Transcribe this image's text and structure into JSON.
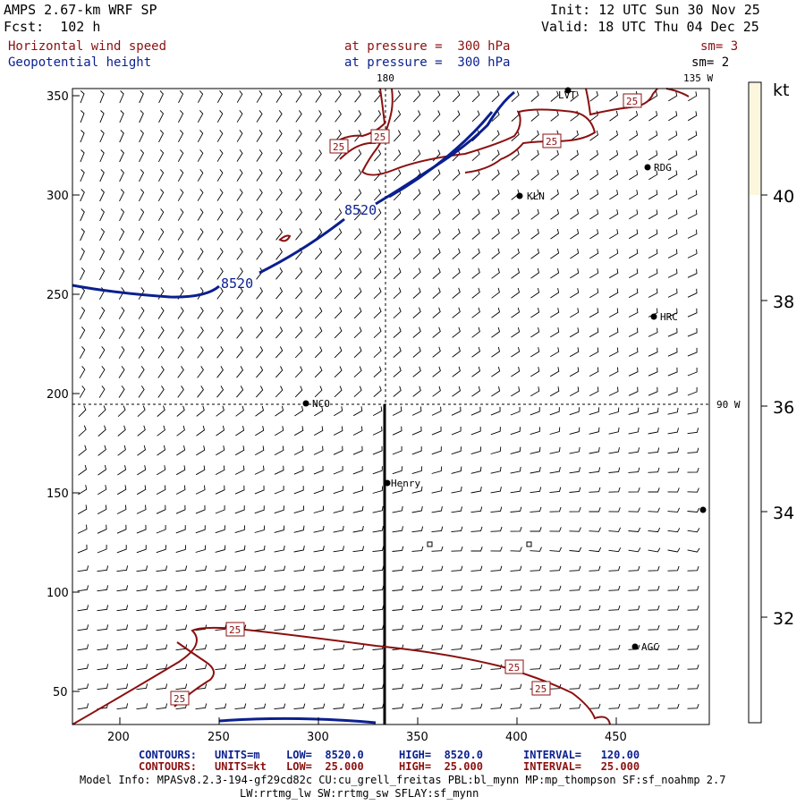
{
  "header": {
    "model": "AMPS 2.67-km WRF SP",
    "forecast": "Fcst:  102 h",
    "init": "Init: 12 UTC Sun 30 Nov 25",
    "valid": "Valid: 18 UTC Thu 04 Dec 25",
    "field1": {
      "name": "Horizontal wind speed",
      "level": "at pressure =  300 hPa",
      "smooth": "sm= 3"
    },
    "field2": {
      "name": "Geopotential height",
      "level": "at pressure =  300 hPa",
      "smooth": "sm= 2"
    }
  },
  "map": {
    "x_ticks": [
      "200",
      "250",
      "300",
      "350",
      "400",
      "450"
    ],
    "y_ticks": [
      "350",
      "300",
      "250",
      "200",
      "150",
      "100",
      "50"
    ],
    "grid_labels": {
      "top_180": "180",
      "top_135w": "135 W",
      "right_90w": "90 W"
    },
    "stations": [
      {
        "name": "LVT"
      },
      {
        "name": "RDG"
      },
      {
        "name": "KLN"
      },
      {
        "name": "HRC"
      },
      {
        "name": "NCO"
      },
      {
        "name": "Henry"
      },
      {
        "name": "AGC"
      },
      {
        "name": ""
      }
    ],
    "height_contour_labels": [
      "8520",
      "8520"
    ],
    "speed_contour_labels": [
      "25",
      "25",
      "25",
      "25",
      "25",
      "25",
      "25"
    ]
  },
  "colorbar": {
    "unit": "kt",
    "labels": [
      "40",
      "38",
      "36",
      "34",
      "32"
    ],
    "colors": {
      "shade_40_plus": "#fbf6dc"
    }
  },
  "footer": {
    "line1": {
      "label": "CONTOURS:",
      "units": "UNITS=m",
      "low": "LOW=  8520.0",
      "high": "HIGH=  8520.0",
      "interval": "INTERVAL=   120.00"
    },
    "line2": {
      "label": "CONTOURS:",
      "units": "UNITS=kt",
      "low": "LOW=  25.000",
      "high": "HIGH=  25.000",
      "interval": "INTERVAL=   25.000"
    },
    "model_info": "Model Info: MPASv8.2.3-194-gf29cd82c CU:cu_grell_freitas PBL:bl_mynn MP:mp_thompson SF:sf_noahmp 2.7",
    "model_info2": "LW:rrtmg_lw SW:rrtmg_sw SFLAY:sf_mynn"
  },
  "colors": {
    "height_contour": "#0b1f8f",
    "speed_contour": "#8b1010",
    "barbs": "#000000"
  }
}
